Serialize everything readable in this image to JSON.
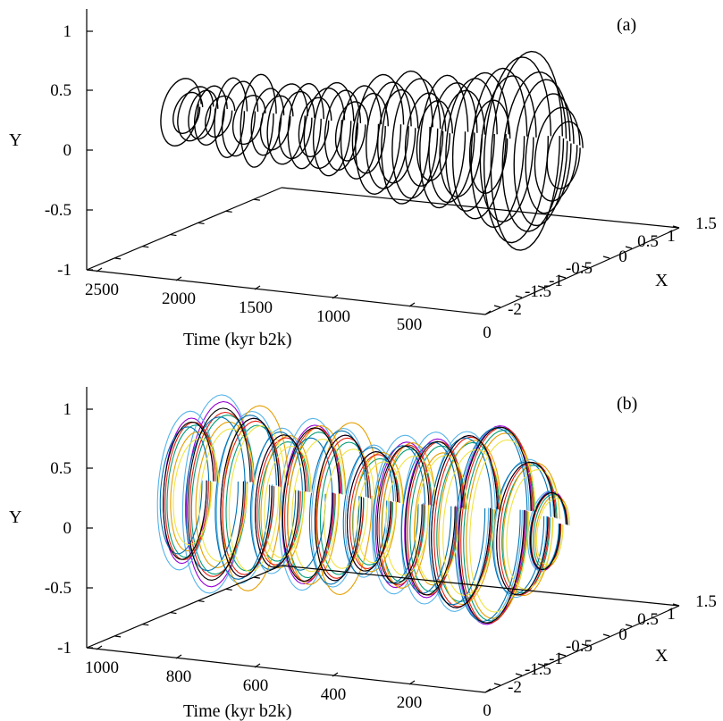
{
  "chart_data": [
    {
      "panel_label": "(a)",
      "type": "line",
      "xlabel": "Time (kyr b2k)",
      "ylabel": "Y",
      "zlabel": "X",
      "time_ticks": [
        "2500",
        "2000",
        "1500",
        "1000",
        "500",
        "0"
      ],
      "y_ticks": [
        "1",
        "0.5",
        "0",
        "-0.5",
        "-1"
      ],
      "x_ticks": [
        "-2",
        "-1.5",
        "-1",
        "-0.5",
        "0",
        "0.5",
        "1",
        "1.5"
      ],
      "time_range": [
        2600,
        0
      ],
      "y_range": [
        -1,
        1
      ],
      "x_range": [
        -2.2,
        1.6
      ],
      "series": [
        {
          "color": "#000000",
          "loops": [
            [
              2555,
              0.25,
              0.25
            ],
            [
              2510,
              0.15,
              0.18
            ],
            [
              2460,
              0.2,
              0.22
            ],
            [
              2410,
              0.18,
              0.18
            ],
            [
              2360,
              0.22,
              0.2
            ],
            [
              2300,
              0.15,
              0.18
            ],
            [
              2230,
              0.3,
              0.2
            ],
            [
              2170,
              0.28,
              0.22
            ],
            [
              2110,
              0.18,
              0.2
            ],
            [
              2050,
              0.35,
              0.22
            ],
            [
              1990,
              0.25,
              0.2
            ],
            [
              1930,
              0.2,
              0.2
            ],
            [
              1860,
              0.3,
              0.25
            ],
            [
              1800,
              0.25,
              0.22
            ],
            [
              1740,
              0.32,
              0.22
            ],
            [
              1680,
              0.22,
              0.2
            ],
            [
              1620,
              0.3,
              0.25
            ],
            [
              1560,
              0.35,
              0.25
            ],
            [
              1500,
              0.3,
              0.22
            ],
            [
              1440,
              0.22,
              0.2
            ],
            [
              1380,
              0.35,
              0.25
            ],
            [
              1320,
              0.3,
              0.22
            ],
            [
              1260,
              0.45,
              0.3
            ],
            [
              1200,
              0.4,
              0.28
            ],
            [
              1140,
              0.35,
              0.25
            ],
            [
              1080,
              0.5,
              0.32
            ],
            [
              1020,
              0.45,
              0.3
            ],
            [
              960,
              0.35,
              0.25
            ],
            [
              900,
              0.3,
              0.22
            ],
            [
              840,
              0.5,
              0.3
            ],
            [
              780,
              0.45,
              0.3
            ],
            [
              720,
              0.4,
              0.28
            ],
            [
              660,
              0.5,
              0.32
            ],
            [
              600,
              0.55,
              0.35
            ],
            [
              540,
              0.35,
              0.25
            ],
            [
              480,
              0.6,
              0.35
            ],
            [
              420,
              0.55,
              0.35
            ],
            [
              360,
              0.7,
              0.42
            ],
            [
              300,
              0.75,
              0.45
            ],
            [
              250,
              0.6,
              0.4
            ],
            [
              200,
              0.55,
              0.35
            ],
            [
              150,
              0.45,
              0.3
            ],
            [
              100,
              0.35,
              0.28
            ],
            [
              50,
              0.25,
              0.22
            ]
          ]
        }
      ]
    },
    {
      "panel_label": "(b)",
      "type": "line",
      "xlabel": "Time (kyr b2k)",
      "ylabel": "Y",
      "zlabel": "X",
      "time_ticks": [
        "1000",
        "800",
        "600",
        "400",
        "200",
        "0"
      ],
      "y_ticks": [
        "1",
        "0.5",
        "0",
        "-0.5",
        "-1"
      ],
      "x_ticks": [
        "-2",
        "-1.5",
        "-1",
        "-0.5",
        "0",
        "0.5",
        "1",
        "1.5"
      ],
      "time_range": [
        1040,
        0
      ],
      "y_range": [
        -1,
        1
      ],
      "x_range": [
        -2.2,
        1.6
      ],
      "series": [
        {
          "color": "#9400d3",
          "loops": [
            [
              1000,
              0.55,
              0.3
            ],
            [
              920,
              0.7,
              0.4
            ],
            [
              840,
              0.6,
              0.35
            ],
            [
              760,
              0.5,
              0.3
            ],
            [
              680,
              0.6,
              0.35
            ],
            [
              600,
              0.55,
              0.32
            ],
            [
              520,
              0.45,
              0.3
            ],
            [
              440,
              0.55,
              0.33
            ],
            [
              360,
              0.6,
              0.35
            ],
            [
              280,
              0.65,
              0.4
            ],
            [
              200,
              0.75,
              0.45
            ],
            [
              120,
              0.5,
              0.35
            ],
            [
              60,
              0.3,
              0.22
            ]
          ]
        },
        {
          "color": "#009e73",
          "loops": [
            [
              990,
              0.5,
              0.3
            ],
            [
              910,
              0.6,
              0.38
            ],
            [
              830,
              0.55,
              0.33
            ],
            [
              750,
              0.45,
              0.3
            ],
            [
              670,
              0.55,
              0.33
            ],
            [
              590,
              0.5,
              0.3
            ],
            [
              510,
              0.4,
              0.28
            ],
            [
              430,
              0.5,
              0.3
            ],
            [
              350,
              0.55,
              0.33
            ],
            [
              270,
              0.6,
              0.38
            ],
            [
              190,
              0.72,
              0.43
            ],
            [
              110,
              0.48,
              0.33
            ],
            [
              55,
              0.28,
              0.2
            ]
          ]
        },
        {
          "color": "#56b4e9",
          "loops": [
            [
              1005,
              0.6,
              0.35
            ],
            [
              925,
              0.75,
              0.42
            ],
            [
              845,
              0.65,
              0.38
            ],
            [
              765,
              0.55,
              0.32
            ],
            [
              685,
              0.65,
              0.36
            ],
            [
              605,
              0.6,
              0.34
            ],
            [
              525,
              0.5,
              0.3
            ],
            [
              445,
              0.6,
              0.35
            ],
            [
              365,
              0.65,
              0.37
            ],
            [
              285,
              0.68,
              0.4
            ],
            [
              205,
              0.74,
              0.44
            ],
            [
              125,
              0.52,
              0.36
            ],
            [
              65,
              0.3,
              0.22
            ]
          ]
        },
        {
          "color": "#e69f00",
          "loops": [
            [
              985,
              0.45,
              0.28
            ],
            [
              905,
              0.55,
              0.35
            ],
            [
              825,
              0.7,
              0.4
            ],
            [
              745,
              0.5,
              0.3
            ],
            [
              665,
              0.6,
              0.35
            ],
            [
              585,
              0.65,
              0.38
            ],
            [
              505,
              0.45,
              0.3
            ],
            [
              425,
              0.55,
              0.32
            ],
            [
              345,
              0.5,
              0.3
            ],
            [
              265,
              0.62,
              0.38
            ],
            [
              185,
              0.7,
              0.42
            ],
            [
              105,
              0.5,
              0.34
            ],
            [
              50,
              0.27,
              0.2
            ]
          ]
        },
        {
          "color": "#e51e10",
          "loops": [
            [
              995,
              0.52,
              0.3
            ],
            [
              915,
              0.62,
              0.38
            ],
            [
              835,
              0.58,
              0.35
            ],
            [
              755,
              0.48,
              0.3
            ],
            [
              675,
              0.58,
              0.34
            ],
            [
              595,
              0.53,
              0.32
            ],
            [
              515,
              0.43,
              0.29
            ],
            [
              435,
              0.53,
              0.31
            ],
            [
              355,
              0.58,
              0.34
            ],
            [
              275,
              0.64,
              0.39
            ],
            [
              195,
              0.74,
              0.44
            ],
            [
              115,
              0.5,
              0.34
            ],
            [
              58,
              0.29,
              0.21
            ]
          ]
        },
        {
          "color": "#0072b2",
          "loops": [
            [
              1010,
              0.48,
              0.29
            ],
            [
              930,
              0.58,
              0.36
            ],
            [
              850,
              0.62,
              0.37
            ],
            [
              770,
              0.52,
              0.31
            ],
            [
              690,
              0.5,
              0.3
            ],
            [
              610,
              0.58,
              0.34
            ],
            [
              530,
              0.48,
              0.3
            ],
            [
              450,
              0.52,
              0.31
            ],
            [
              370,
              0.57,
              0.34
            ],
            [
              290,
              0.63,
              0.38
            ],
            [
              210,
              0.73,
              0.44
            ],
            [
              130,
              0.5,
              0.35
            ],
            [
              62,
              0.29,
              0.21
            ]
          ]
        },
        {
          "color": "#f0e442",
          "loops": [
            [
              980,
              0.4,
              0.27
            ],
            [
              900,
              0.5,
              0.33
            ],
            [
              820,
              0.55,
              0.34
            ],
            [
              740,
              0.42,
              0.28
            ],
            [
              660,
              0.5,
              0.32
            ],
            [
              580,
              0.45,
              0.3
            ],
            [
              500,
              0.38,
              0.27
            ],
            [
              420,
              0.45,
              0.3
            ],
            [
              340,
              0.48,
              0.31
            ],
            [
              260,
              0.55,
              0.35
            ],
            [
              180,
              0.65,
              0.4
            ],
            [
              100,
              0.45,
              0.32
            ],
            [
              48,
              0.25,
              0.19
            ]
          ]
        },
        {
          "color": "#000000",
          "loops": [
            [
              1000,
              0.52,
              0.3
            ],
            [
              920,
              0.65,
              0.38
            ],
            [
              840,
              0.6,
              0.35
            ],
            [
              760,
              0.5,
              0.3
            ],
            [
              680,
              0.58,
              0.34
            ],
            [
              600,
              0.55,
              0.32
            ],
            [
              520,
              0.45,
              0.3
            ],
            [
              440,
              0.52,
              0.31
            ],
            [
              360,
              0.58,
              0.34
            ],
            [
              280,
              0.65,
              0.4
            ],
            [
              200,
              0.74,
              0.44
            ],
            [
              120,
              0.5,
              0.35
            ],
            [
              60,
              0.29,
              0.21
            ]
          ]
        }
      ]
    }
  ]
}
